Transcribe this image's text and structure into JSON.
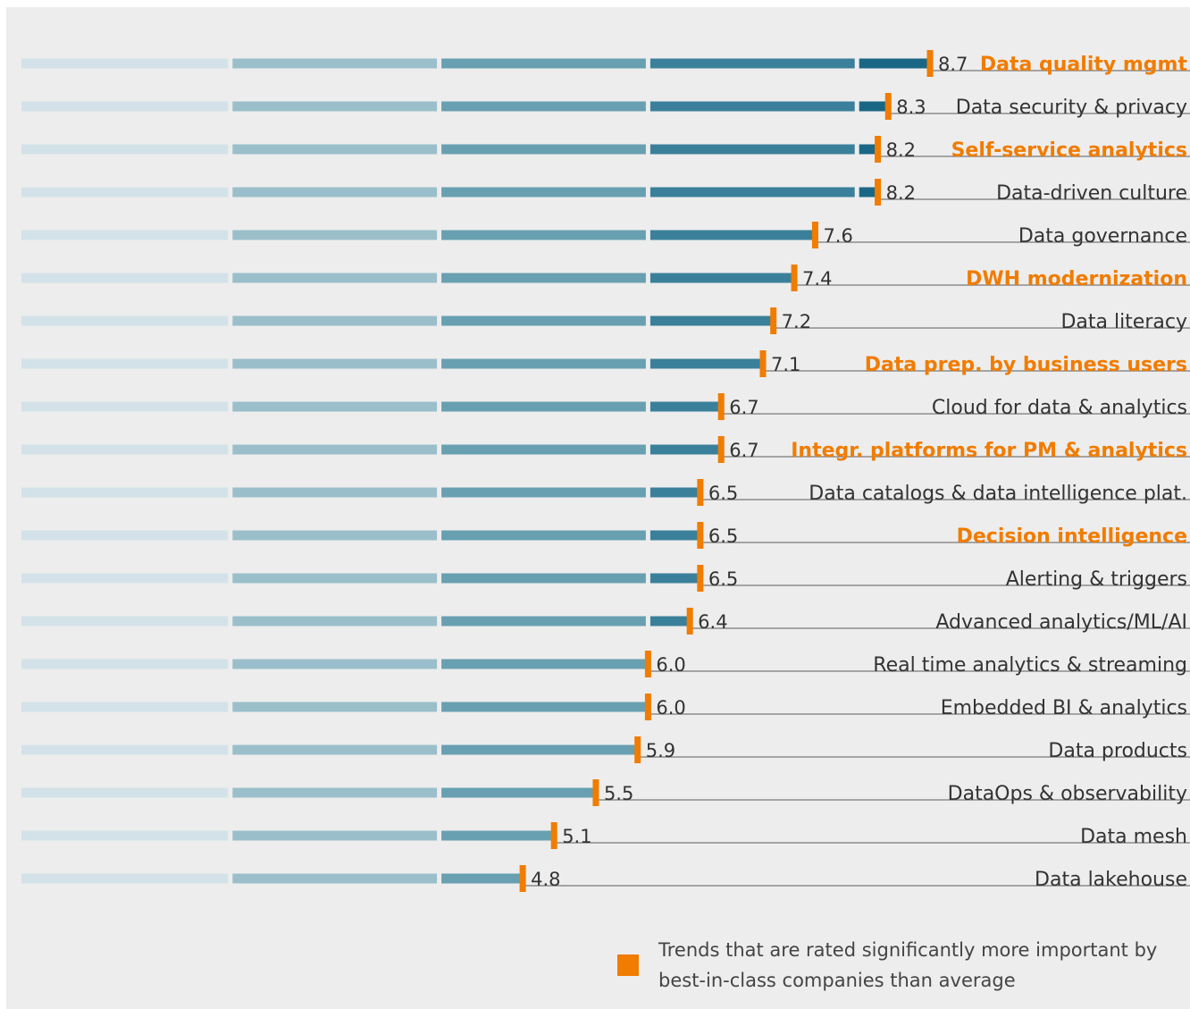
{
  "colors": {
    "marker": "#f07c00",
    "label_highlight": "#f07c00",
    "label_normal": "#333333",
    "background": "#ededed",
    "segment_shades": [
      "#d3e2e8",
      "#9abfcb",
      "#68a0b1",
      "#3b809a",
      "#1a6785"
    ]
  },
  "chart_data": {
    "type": "bar",
    "orientation": "horizontal",
    "xlim": [
      0,
      10
    ],
    "grid": false,
    "legend_position": "bottom-right",
    "bars": [
      {
        "label": "Data quality mgmt",
        "value": 8.7,
        "value_label": "8.7",
        "highlighted": true
      },
      {
        "label": "Data security & privacy",
        "value": 8.3,
        "value_label": "8.3",
        "highlighted": false
      },
      {
        "label": "Self-service analytics",
        "value": 8.2,
        "value_label": "8.2",
        "highlighted": true
      },
      {
        "label": "Data-driven culture",
        "value": 8.2,
        "value_label": "8.2",
        "highlighted": false
      },
      {
        "label": "Data governance",
        "value": 7.6,
        "value_label": "7.6",
        "highlighted": false
      },
      {
        "label": "DWH modernization",
        "value": 7.4,
        "value_label": "7.4",
        "highlighted": true
      },
      {
        "label": "Data literacy",
        "value": 7.2,
        "value_label": "7.2",
        "highlighted": false
      },
      {
        "label": "Data prep. by business users",
        "value": 7.1,
        "value_label": "7.1",
        "highlighted": true
      },
      {
        "label": "Cloud for data & analytics",
        "value": 6.7,
        "value_label": "6.7",
        "highlighted": false
      },
      {
        "label": "Integr. platforms for PM & analytics",
        "value": 6.7,
        "value_label": "6.7",
        "highlighted": true
      },
      {
        "label": "Data catalogs & data intelligence plat.",
        "value": 6.5,
        "value_label": "6.5",
        "highlighted": false
      },
      {
        "label": "Decision intelligence",
        "value": 6.5,
        "value_label": "6.5",
        "highlighted": true
      },
      {
        "label": "Alerting & triggers",
        "value": 6.5,
        "value_label": "6.5",
        "highlighted": false
      },
      {
        "label": "Advanced analytics/ML/AI",
        "value": 6.4,
        "value_label": "6.4",
        "highlighted": false
      },
      {
        "label": "Real time analytics & streaming",
        "value": 6.0,
        "value_label": "6.0",
        "highlighted": false
      },
      {
        "label": "Embedded BI & analytics",
        "value": 6.0,
        "value_label": "6.0",
        "highlighted": false
      },
      {
        "label": "Data products",
        "value": 5.9,
        "value_label": "5.9",
        "highlighted": false
      },
      {
        "label": "DataOps & observability",
        "value": 5.5,
        "value_label": "5.5",
        "highlighted": false
      },
      {
        "label": "Data mesh",
        "value": 5.1,
        "value_label": "5.1",
        "highlighted": false
      },
      {
        "label": "Data lakehouse",
        "value": 4.8,
        "value_label": "4.8",
        "highlighted": false
      }
    ]
  },
  "legend": {
    "text": "Trends that are rated significantly more important by best-in-class companies than average"
  }
}
